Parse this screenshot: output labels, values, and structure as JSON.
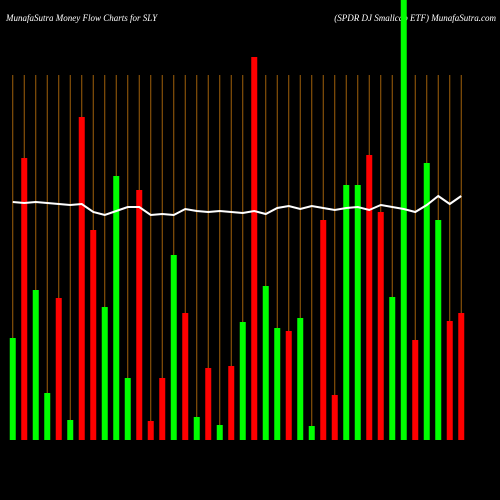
{
  "chart_data": {
    "type": "bar",
    "title": "MunafaSutra  Money Flow  Charts for SLY",
    "subtitle": "(SPDR DJ Smallcap ETF) MunafaSutra.com",
    "categories": [
      null,
      null,
      null,
      null,
      null,
      null,
      null,
      null,
      null,
      null,
      null,
      null,
      null,
      null,
      null,
      null,
      null,
      null,
      null,
      null,
      null,
      null,
      null,
      null,
      null,
      null,
      null,
      null,
      null,
      null,
      null,
      null,
      null,
      null,
      null,
      null,
      null,
      null,
      null,
      null
    ],
    "values": [
      102,
      282,
      150,
      47,
      142,
      20,
      323,
      210,
      133,
      264,
      62,
      250,
      19,
      62,
      185,
      127,
      23,
      72,
      15,
      74,
      118,
      383,
      154,
      112,
      109,
      122,
      14,
      220,
      45,
      255,
      255,
      285,
      228,
      143,
      440,
      100,
      277,
      220,
      119,
      127
    ],
    "colors": [
      "#00ff00",
      "#ff0000",
      "#00ff00",
      "#00ff00",
      "#ff0000",
      "#00ff00",
      "#ff0000",
      "#ff0000",
      "#00ff00",
      "#00ff00",
      "#00ff00",
      "#ff0000",
      "#ff0000",
      "#ff0000",
      "#00ff00",
      "#ff0000",
      "#00ff00",
      "#ff0000",
      "#00ff00",
      "#ff0000",
      "#00ff00",
      "#ff0000",
      "#00ff00",
      "#00ff00",
      "#ff0000",
      "#00ff00",
      "#00ff00",
      "#ff0000",
      "#ff0000",
      "#00ff00",
      "#00ff00",
      "#ff0000",
      "#ff0000",
      "#00ff00",
      "#00ff00",
      "#ff0000",
      "#00ff00",
      "#00ff00",
      "#ff0000",
      "#ff0000"
    ],
    "line": {
      "color": "#ffffff",
      "values": [
        238,
        237,
        238,
        237,
        236,
        235,
        236,
        228,
        225,
        229,
        233,
        233,
        225,
        226,
        225,
        231,
        229,
        228,
        229,
        228,
        227,
        229,
        226,
        232,
        234,
        231,
        234,
        232,
        230,
        232,
        233,
        230,
        235,
        233,
        231,
        228,
        235,
        244,
        236,
        244
      ]
    },
    "ylim": [
      0,
      440
    ],
    "grid": true
  }
}
